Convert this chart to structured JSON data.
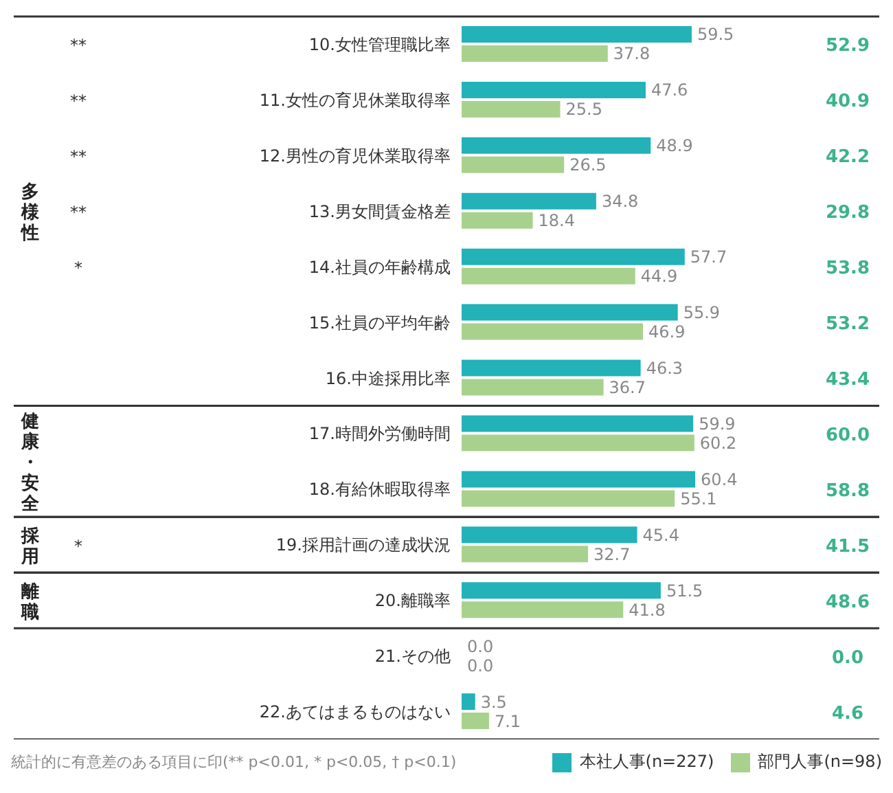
{
  "chart_data": {
    "type": "bar",
    "orientation": "horizontal",
    "legend": "bottom right",
    "categories": [
      "10.女性管理職比率",
      "11.女性の育児休業取得率",
      "12.男性の育児休業取得率",
      "13.男女間賃金格差",
      "14.社員の年齢構成",
      "15.社員の平均年齢",
      "16.中途採用比率",
      "17.時間外労働時間",
      "18.有給休暇取得率",
      "19.採用計画の達成状況",
      "20.離職率",
      "21.その他",
      "22.あてはまるものはない"
    ],
    "series": [
      {
        "name": "本社人事(n=227)",
        "color": "#22b2b8",
        "values": [
          59.5,
          47.6,
          48.9,
          34.8,
          57.7,
          55.9,
          46.3,
          59.9,
          60.4,
          45.4,
          51.5,
          0.0,
          3.5
        ],
        "value_labels": [
          "59.5",
          "47.6",
          "48.9",
          "34.8",
          "57.7",
          "55.9",
          "46.3",
          "59.9",
          "60.4",
          "45.4",
          "51.5",
          "0.0",
          "3.5"
        ]
      },
      {
        "name": "部門人事(n=98)",
        "color": "#a9d18e",
        "values": [
          37.8,
          25.5,
          26.5,
          18.4,
          44.9,
          46.9,
          36.7,
          60.2,
          55.1,
          32.7,
          41.8,
          0.0,
          7.1
        ],
        "value_labels": [
          "37.8",
          "25.5",
          "26.5",
          "18.4",
          "44.9",
          "46.9",
          "36.7",
          "60.2",
          "55.1",
          "32.7",
          "41.8",
          "0.0",
          "7.1"
        ]
      }
    ],
    "annotations": [
      "52.9",
      "40.9",
      "42.2",
      "29.8",
      "53.8",
      "53.2",
      "43.4",
      "60.0",
      "58.8",
      "41.5",
      "48.6",
      "0.0",
      "4.6",
      "**",
      "**",
      "**",
      "**",
      "*",
      "*",
      "多様性",
      "健康・安全",
      "採用",
      "離職",
      "統計的に有意差のある項目に印(** p<0.01, * p<0.05, † p<0.1)"
    ]
  }
}
